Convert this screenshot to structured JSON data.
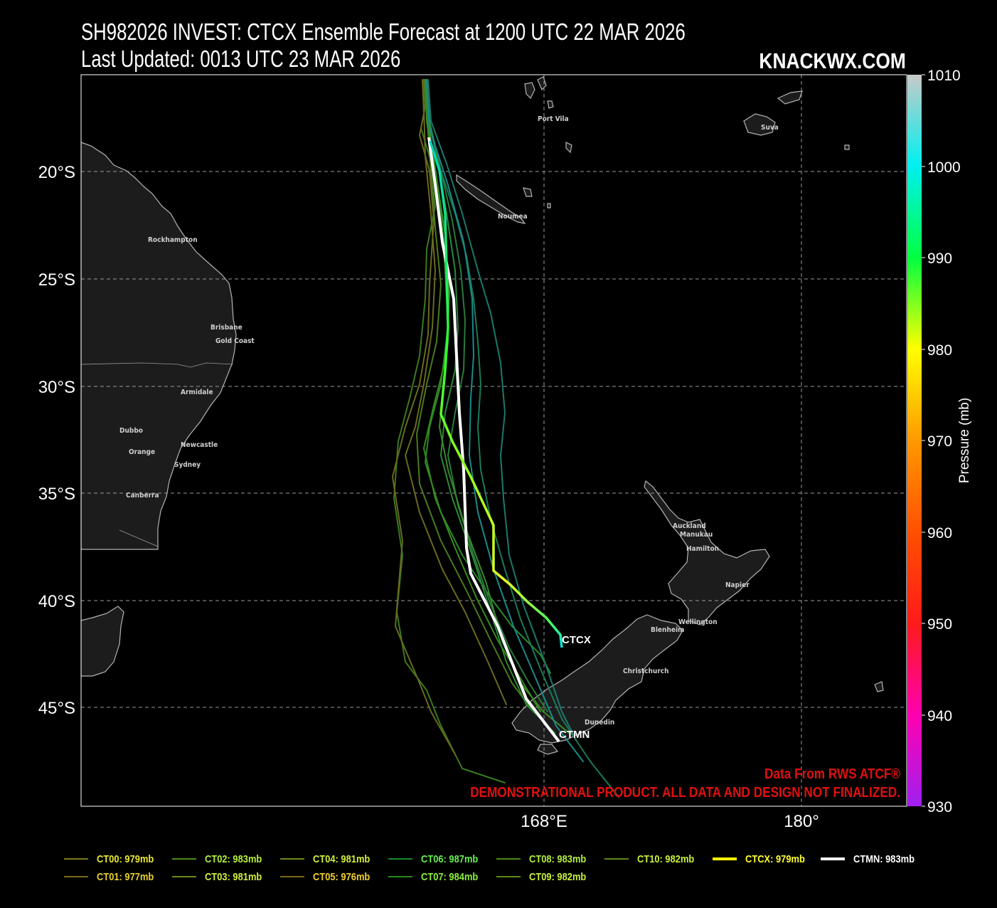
{
  "header": {
    "title_line1": "SH982026 INVEST: CTCX Ensemble Forecast at 1200 UTC 22 MAR 2026",
    "title_line2": "Last Updated: 0013 UTC 23 MAR 2026",
    "brand": "KNACKWX.COM"
  },
  "map": {
    "lat_ticks": [
      "20°S",
      "25°S",
      "30°S",
      "35°S",
      "40°S",
      "45°S"
    ],
    "lon_ticks": [
      "168°E",
      "180°"
    ],
    "places": [
      "Port Vila",
      "Suva",
      "Noumea",
      "Rockhampton",
      "Brisbane",
      "Gold Coast",
      "Armidale",
      "Dubbo",
      "Orange",
      "Newcastle",
      "Sydney",
      "Canberra",
      "Auckland",
      "Manukau",
      "Hamilton",
      "Napier",
      "Wellington",
      "Blenheim",
      "Christchurch",
      "Dunedin"
    ],
    "track_labels": {
      "ctcx": "CTCX",
      "ctmn": "CTMN"
    },
    "credit": "Data From RWS ATCF®",
    "disclaimer": "DEMONSTRATIONAL PRODUCT. ALL DATA AND DESIGN NOT FINALIZED."
  },
  "colorbar": {
    "label": "Pressure (mb)",
    "ticks": [
      "1010",
      "1000",
      "990",
      "980",
      "970",
      "960",
      "950",
      "940",
      "930"
    ],
    "colors": [
      "#c9c9c9",
      "#00f0f0",
      "#00ff40",
      "#ffff00",
      "#ff9900",
      "#ff5000",
      "#ff1a1a",
      "#ff00b0",
      "#a020f0"
    ]
  },
  "legend": [
    {
      "id": "CT00",
      "text": "CT00: 979mb",
      "color": "#7a7a1a",
      "text_color": "#e8e832"
    },
    {
      "id": "CT01",
      "text": "CT01: 977mb",
      "color": "#7a6a1a",
      "text_color": "#e8d032"
    },
    {
      "id": "CT02",
      "text": "CT02: 983mb",
      "color": "#4a8a1a",
      "text_color": "#b4f03c"
    },
    {
      "id": "CT03",
      "text": "CT03: 981mb",
      "color": "#6a8a1a",
      "text_color": "#d0f03c"
    },
    {
      "id": "CT04",
      "text": "CT04: 981mb",
      "color": "#6a8a1a",
      "text_color": "#d0f03c"
    },
    {
      "id": "CT05",
      "text": "CT05: 976mb",
      "color": "#7a6a1a",
      "text_color": "#f0d032"
    },
    {
      "id": "CT06",
      "text": "CT06: 987mb",
      "color": "#1a8a2a",
      "text_color": "#64f050"
    },
    {
      "id": "CT07",
      "text": "CT07: 984mb",
      "color": "#2a8a1a",
      "text_color": "#8cf03c"
    },
    {
      "id": "CT08",
      "text": "CT08: 983mb",
      "color": "#4a8a1a",
      "text_color": "#b4f03c"
    },
    {
      "id": "CT09",
      "text": "CT09: 982mb",
      "color": "#5a8a1a",
      "text_color": "#c8f03c"
    },
    {
      "id": "CT10",
      "text": "CT10: 982mb",
      "color": "#5a8a1a",
      "text_color": "#c8f03c"
    },
    {
      "id": "CTCX",
      "text": "CTCX: 979mb",
      "color": "#ffff00",
      "text_color": "#ffff32"
    },
    {
      "id": "CTMN",
      "text": "CTMN: 983mb",
      "color": "#ffffff",
      "text_color": "#ffffff"
    }
  ]
}
